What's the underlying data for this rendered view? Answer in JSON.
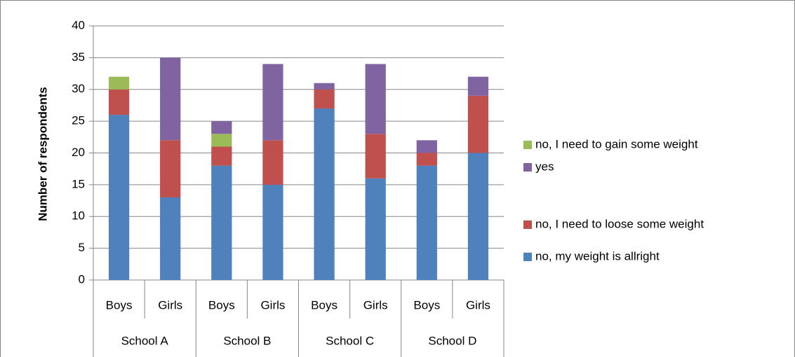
{
  "chart_data": {
    "type": "stacked_bar",
    "y_label": "Number of respondents",
    "categories": [
      "Boys",
      "Girls",
      "Boys",
      "Girls",
      "Boys",
      "Girls",
      "Boys",
      "Girls"
    ],
    "groups": [
      "School A",
      "School B",
      "School C",
      "School D"
    ],
    "series": [
      {
        "name": "no, my weight is allright",
        "color": "#4f81bd",
        "values": [
          26,
          13,
          18,
          15,
          27,
          16,
          18,
          20
        ]
      },
      {
        "name": "no, I need to loose some weight",
        "color": "#c0504d",
        "values": [
          4,
          9,
          3,
          7,
          3,
          7,
          2,
          9
        ]
      },
      {
        "name": "no, I need to gain some weight",
        "color": "#9bbb59",
        "values": [
          2,
          0,
          2,
          0,
          0,
          0,
          0,
          0
        ]
      },
      {
        "name": "yes",
        "color": "#8064a2",
        "values": [
          0,
          13,
          2,
          12,
          1,
          11,
          2,
          3
        ]
      }
    ],
    "ylim": [
      0,
      40
    ],
    "yticks": [
      0,
      5,
      10,
      15,
      20,
      25,
      30,
      35,
      40
    ],
    "grid": true,
    "legend": "right"
  }
}
